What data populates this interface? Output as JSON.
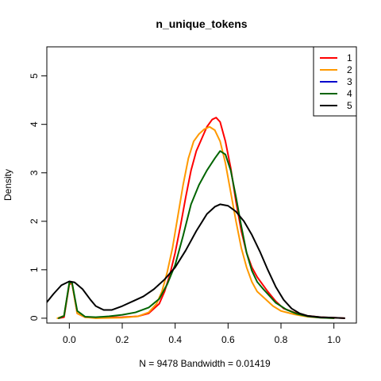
{
  "chart_data": {
    "type": "line",
    "title": "n_unique_tokens",
    "xlabel": "N = 9478   Bandwidth = 0.01419",
    "ylabel": "Density",
    "xlim": [
      -0.085,
      1.085
    ],
    "ylim": [
      -0.1,
      5.6
    ],
    "xticks": [
      0.0,
      0.2,
      0.4,
      0.6,
      0.8,
      1.0
    ],
    "xtick_labels": [
      "0.0",
      "0.2",
      "0.4",
      "0.6",
      "0.8",
      "1.0"
    ],
    "yticks": [
      0,
      1,
      2,
      3,
      4,
      5
    ],
    "ytick_labels": [
      "0",
      "1",
      "2",
      "3",
      "4",
      "5"
    ],
    "grid": false,
    "legend_position": "top-right",
    "series": [
      {
        "name": "1",
        "color": "#ff0000",
        "points": [
          [
            -0.04,
            0.0
          ],
          [
            -0.02,
            0.02
          ],
          [
            0.0,
            0.7
          ],
          [
            0.01,
            0.72
          ],
          [
            0.03,
            0.1
          ],
          [
            0.06,
            0.02
          ],
          [
            0.1,
            0.01
          ],
          [
            0.2,
            0.02
          ],
          [
            0.26,
            0.04
          ],
          [
            0.3,
            0.1
          ],
          [
            0.34,
            0.3
          ],
          [
            0.36,
            0.55
          ],
          [
            0.38,
            0.9
          ],
          [
            0.4,
            1.35
          ],
          [
            0.42,
            1.9
          ],
          [
            0.44,
            2.5
          ],
          [
            0.46,
            3.05
          ],
          [
            0.48,
            3.45
          ],
          [
            0.5,
            3.7
          ],
          [
            0.52,
            3.95
          ],
          [
            0.54,
            4.1
          ],
          [
            0.555,
            4.14
          ],
          [
            0.57,
            4.05
          ],
          [
            0.59,
            3.65
          ],
          [
            0.61,
            3.1
          ],
          [
            0.63,
            2.4
          ],
          [
            0.65,
            1.8
          ],
          [
            0.67,
            1.35
          ],
          [
            0.69,
            1.05
          ],
          [
            0.71,
            0.85
          ],
          [
            0.73,
            0.7
          ],
          [
            0.75,
            0.55
          ],
          [
            0.78,
            0.35
          ],
          [
            0.81,
            0.2
          ],
          [
            0.85,
            0.12
          ],
          [
            0.9,
            0.05
          ],
          [
            0.95,
            0.02
          ],
          [
            1.0,
            0.01
          ],
          [
            1.04,
            0.0
          ]
        ]
      },
      {
        "name": "2",
        "color": "#ff9900",
        "points": [
          [
            -0.045,
            0.0
          ],
          [
            -0.02,
            0.05
          ],
          [
            0.0,
            0.72
          ],
          [
            0.01,
            0.73
          ],
          [
            0.03,
            0.1
          ],
          [
            0.06,
            0.02
          ],
          [
            0.1,
            0.0
          ],
          [
            0.2,
            0.01
          ],
          [
            0.26,
            0.04
          ],
          [
            0.3,
            0.12
          ],
          [
            0.33,
            0.3
          ],
          [
            0.35,
            0.55
          ],
          [
            0.37,
            0.95
          ],
          [
            0.39,
            1.45
          ],
          [
            0.41,
            2.1
          ],
          [
            0.43,
            2.75
          ],
          [
            0.45,
            3.3
          ],
          [
            0.47,
            3.65
          ],
          [
            0.49,
            3.8
          ],
          [
            0.51,
            3.9
          ],
          [
            0.53,
            3.95
          ],
          [
            0.55,
            3.88
          ],
          [
            0.57,
            3.65
          ],
          [
            0.59,
            3.2
          ],
          [
            0.61,
            2.6
          ],
          [
            0.63,
            2.0
          ],
          [
            0.65,
            1.45
          ],
          [
            0.67,
            1.05
          ],
          [
            0.69,
            0.75
          ],
          [
            0.71,
            0.55
          ],
          [
            0.73,
            0.45
          ],
          [
            0.75,
            0.35
          ],
          [
            0.77,
            0.25
          ],
          [
            0.8,
            0.15
          ],
          [
            0.85,
            0.08
          ],
          [
            0.9,
            0.03
          ],
          [
            0.95,
            0.01
          ],
          [
            1.0,
            0.0
          ]
        ]
      },
      {
        "name": "3",
        "color": "#0000cc",
        "points": []
      },
      {
        "name": "4",
        "color": "#006400",
        "points": [
          [
            -0.04,
            0.0
          ],
          [
            -0.02,
            0.05
          ],
          [
            0.0,
            0.73
          ],
          [
            0.01,
            0.74
          ],
          [
            0.03,
            0.15
          ],
          [
            0.06,
            0.03
          ],
          [
            0.1,
            0.02
          ],
          [
            0.15,
            0.04
          ],
          [
            0.2,
            0.07
          ],
          [
            0.25,
            0.12
          ],
          [
            0.3,
            0.22
          ],
          [
            0.34,
            0.4
          ],
          [
            0.37,
            0.7
          ],
          [
            0.4,
            1.1
          ],
          [
            0.43,
            1.7
          ],
          [
            0.46,
            2.35
          ],
          [
            0.49,
            2.75
          ],
          [
            0.52,
            3.05
          ],
          [
            0.55,
            3.3
          ],
          [
            0.57,
            3.45
          ],
          [
            0.59,
            3.38
          ],
          [
            0.61,
            3.05
          ],
          [
            0.63,
            2.5
          ],
          [
            0.65,
            1.9
          ],
          [
            0.67,
            1.35
          ],
          [
            0.69,
            0.98
          ],
          [
            0.71,
            0.75
          ],
          [
            0.73,
            0.62
          ],
          [
            0.75,
            0.5
          ],
          [
            0.78,
            0.32
          ],
          [
            0.82,
            0.18
          ],
          [
            0.86,
            0.09
          ],
          [
            0.9,
            0.04
          ],
          [
            0.95,
            0.01
          ],
          [
            1.0,
            0.0
          ]
        ]
      },
      {
        "name": "5",
        "color": "#000000",
        "points": [
          [
            -0.085,
            0.33
          ],
          [
            -0.06,
            0.5
          ],
          [
            -0.03,
            0.68
          ],
          [
            0.0,
            0.76
          ],
          [
            0.02,
            0.74
          ],
          [
            0.05,
            0.6
          ],
          [
            0.08,
            0.38
          ],
          [
            0.1,
            0.25
          ],
          [
            0.13,
            0.17
          ],
          [
            0.16,
            0.17
          ],
          [
            0.2,
            0.25
          ],
          [
            0.24,
            0.35
          ],
          [
            0.28,
            0.45
          ],
          [
            0.32,
            0.6
          ],
          [
            0.36,
            0.8
          ],
          [
            0.4,
            1.05
          ],
          [
            0.44,
            1.4
          ],
          [
            0.48,
            1.8
          ],
          [
            0.52,
            2.15
          ],
          [
            0.55,
            2.3
          ],
          [
            0.57,
            2.35
          ],
          [
            0.6,
            2.32
          ],
          [
            0.63,
            2.2
          ],
          [
            0.66,
            2.0
          ],
          [
            0.69,
            1.72
          ],
          [
            0.72,
            1.38
          ],
          [
            0.75,
            1.0
          ],
          [
            0.78,
            0.65
          ],
          [
            0.81,
            0.38
          ],
          [
            0.84,
            0.2
          ],
          [
            0.87,
            0.1
          ],
          [
            0.9,
            0.05
          ],
          [
            0.95,
            0.02
          ],
          [
            1.0,
            0.01
          ],
          [
            1.04,
            0.0
          ]
        ]
      }
    ]
  }
}
